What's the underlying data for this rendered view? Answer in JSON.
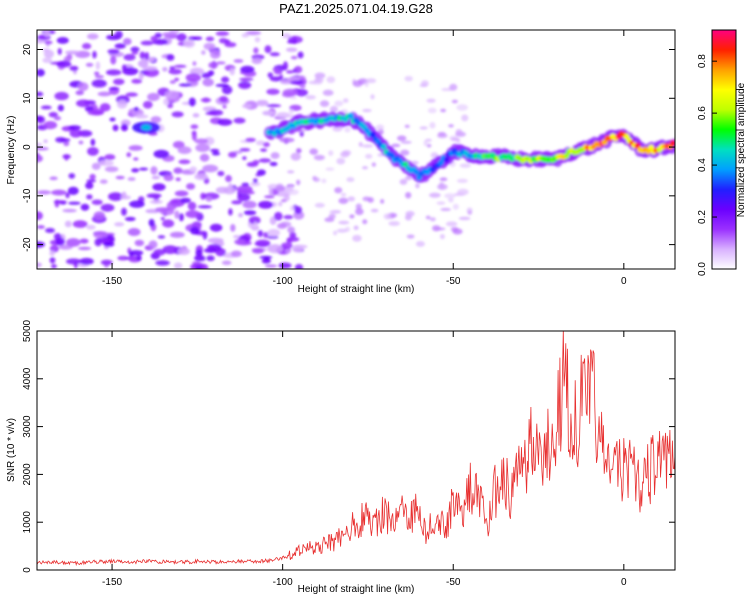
{
  "title": "PAZ1.2025.071.04.19.G28",
  "chart_data": [
    {
      "type": "heatmap",
      "xlabel": "Height of straight line (km)",
      "ylabel": "Frequency (Hz)",
      "xlim": [
        -172,
        15
      ],
      "ylim": [
        -25,
        24
      ],
      "xticks": [
        -150,
        -100,
        -50,
        0
      ],
      "yticks": [
        -20,
        -10,
        0,
        10,
        20
      ],
      "colorbar": {
        "label": "Normalized spectral amplitude",
        "range": [
          0.0,
          0.92
        ],
        "ticks": [
          "0.0",
          "0.2",
          "0.4",
          "0.6",
          "0.8"
        ],
        "colormap": [
          "#ffffff",
          "#d8b0ff",
          "#9a30ff",
          "#6a00ff",
          "#2020ff",
          "#00a0ff",
          "#00e0c0",
          "#00ff00",
          "#c0ff00",
          "#ffff00",
          "#ffa000",
          "#ff2000",
          "#ff0080"
        ]
      },
      "ridge": [
        {
          "x": -140,
          "f": 4.0,
          "a": 0.35
        },
        {
          "x": -102,
          "f": 3.0,
          "a": 0.4
        },
        {
          "x": -95,
          "f": 5.0,
          "a": 0.45
        },
        {
          "x": -88,
          "f": 5.5,
          "a": 0.5
        },
        {
          "x": -80,
          "f": 6.0,
          "a": 0.45
        },
        {
          "x": -76,
          "f": 4.0,
          "a": 0.4
        },
        {
          "x": -72,
          "f": 1.0,
          "a": 0.4
        },
        {
          "x": -68,
          "f": -2.0,
          "a": 0.45
        },
        {
          "x": -64,
          "f": -3.5,
          "a": 0.45
        },
        {
          "x": -60,
          "f": -6.0,
          "a": 0.45
        },
        {
          "x": -55,
          "f": -4.0,
          "a": 0.35
        },
        {
          "x": -50,
          "f": -1.0,
          "a": 0.35
        },
        {
          "x": -45,
          "f": -1.5,
          "a": 0.45
        },
        {
          "x": -40,
          "f": -2.0,
          "a": 0.55
        },
        {
          "x": -35,
          "f": -2.0,
          "a": 0.6
        },
        {
          "x": -30,
          "f": -2.5,
          "a": 0.6
        },
        {
          "x": -25,
          "f": -2.5,
          "a": 0.65
        },
        {
          "x": -20,
          "f": -2.5,
          "a": 0.7
        },
        {
          "x": -15,
          "f": -1.0,
          "a": 0.75
        },
        {
          "x": -10,
          "f": 0.0,
          "a": 0.8
        },
        {
          "x": -5,
          "f": 1.5,
          "a": 0.85
        },
        {
          "x": 0,
          "f": 2.5,
          "a": 0.85
        },
        {
          "x": 5,
          "f": -0.5,
          "a": 0.9
        },
        {
          "x": 10,
          "f": -0.5,
          "a": 0.85
        },
        {
          "x": 15,
          "f": 0.5,
          "a": 0.8
        }
      ]
    },
    {
      "type": "line",
      "xlabel": "Height of straight line (km)",
      "ylabel": "SNR (10 * v/v)",
      "xlim": [
        -172,
        15
      ],
      "ylim": [
        0,
        5000
      ],
      "xticks": [
        -150,
        -100,
        -50,
        0
      ],
      "yticks": [
        0,
        1000,
        2000,
        3000,
        4000,
        5000
      ],
      "line_color": "#e83030",
      "series": [
        {
          "x": [
            -172,
            -165,
            -160,
            -155,
            -150,
            -145,
            -140,
            -135,
            -130,
            -125,
            -120,
            -115,
            -110,
            -105,
            -100,
            -98,
            -95,
            -92,
            -90,
            -88,
            -85,
            -82,
            -80,
            -78,
            -75,
            -72,
            -70,
            -68,
            -65,
            -62,
            -60,
            -58,
            -55,
            -52,
            -50,
            -48,
            -45,
            -42,
            -40,
            -38,
            -35,
            -33,
            -30,
            -28,
            -25,
            -23,
            -20,
            -18,
            -15,
            -12,
            -10,
            -8,
            -7,
            -5,
            -3,
            0,
            3,
            5,
            8,
            10,
            12,
            15
          ],
          "y": [
            150,
            160,
            140,
            170,
            180,
            160,
            190,
            170,
            160,
            180,
            170,
            175,
            180,
            190,
            250,
            300,
            400,
            450,
            500,
            550,
            600,
            750,
            900,
            1000,
            1100,
            1050,
            1200,
            1000,
            1300,
            1100,
            1400,
            800,
            1100,
            900,
            1500,
            1200,
            1700,
            1400,
            900,
            1600,
            2000,
            1500,
            2200,
            2500,
            2700,
            2400,
            3300,
            3800,
            3200,
            3400,
            3600,
            3300,
            2800,
            2000,
            2300,
            2100,
            2000,
            1800,
            2100,
            2500,
            2200,
            2400
          ]
        }
      ]
    }
  ]
}
